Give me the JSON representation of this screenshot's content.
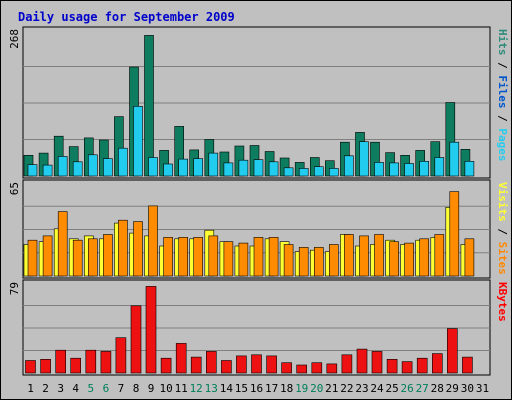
{
  "chart_data": {
    "type": "bar",
    "title": "Daily usage for September 2009",
    "categories": [
      "1",
      "2",
      "3",
      "4",
      "5",
      "6",
      "7",
      "8",
      "9",
      "10",
      "11",
      "12",
      "13",
      "14",
      "15",
      "16",
      "17",
      "18",
      "19",
      "20",
      "21",
      "22",
      "23",
      "24",
      "25",
      "26",
      "27",
      "28",
      "29",
      "30",
      "31"
    ],
    "weekend_days": [
      5,
      6,
      12,
      13,
      19,
      20,
      26,
      27
    ],
    "panels": [
      {
        "id": "hits",
        "axis_max_label": "268",
        "ylim": [
          0,
          268
        ],
        "legend": [
          {
            "label": "Hits",
            "color": "#2e8b7a"
          },
          {
            "label": "Files",
            "color": "#0055cc"
          },
          {
            "label": "Pages",
            "color": "#22ccee"
          }
        ],
        "series": [
          {
            "name": "Hits",
            "color": "#0e7d5f",
            "values": [
              38,
              42,
              73,
              54,
              70,
              66,
              109,
              200,
              258,
              47,
              91,
              48,
              67,
              44,
              55,
              56,
              45,
              33,
              25,
              34,
              28,
              62,
              80,
              62,
              43,
              38,
              47,
              63,
              135,
              49,
              0
            ]
          },
          {
            "name": "Pages",
            "color": "#22ccee",
            "values": [
              21,
              20,
              36,
              26,
              39,
              32,
              51,
              128,
              34,
              22,
              31,
              32,
              42,
              24,
              29,
              30,
              26,
              15,
              14,
              17,
              14,
              37,
              63,
              25,
              24,
              23,
              27,
              34,
              62,
              27,
              0
            ]
          }
        ]
      },
      {
        "id": "visits",
        "axis_max_label": "65",
        "ylim": [
          0,
          65
        ],
        "legend": [
          {
            "label": "Visits",
            "color": "#ffff33"
          },
          {
            "label": "Sites",
            "color": "#ff8800"
          }
        ],
        "series": [
          {
            "name": "Visits",
            "color": "#ffff33",
            "values": [
              22,
              24,
              33,
              26,
              28,
              26,
              37,
              30,
              28,
              21,
              26,
              26,
              32,
              24,
              21,
              21,
              26,
              24,
              17,
              18,
              17,
              29,
              21,
              22,
              25,
              22,
              25,
              27,
              48,
              22,
              0
            ]
          },
          {
            "name": "Sites",
            "color": "#ff8c00",
            "values": [
              25,
              28,
              45,
              25,
              26,
              29,
              39,
              38,
              49,
              27,
              27,
              27,
              28,
              24,
              23,
              27,
              27,
              22,
              20,
              20,
              22,
              29,
              28,
              29,
              24,
              23,
              26,
              29,
              59,
              26,
              0
            ]
          }
        ]
      },
      {
        "id": "kbytes",
        "axis_max_label": "79",
        "ylim": [
          0,
          79
        ],
        "legend": [
          {
            "label": "KBytes",
            "color": "#ff0000"
          }
        ],
        "series": [
          {
            "name": "KBytes",
            "color": "#ee1111",
            "values": [
              11,
              12,
              20,
              13,
              20,
              19,
              31,
              59,
              76,
              13,
              26,
              14,
              19,
              11,
              15,
              16,
              15,
              9,
              7,
              9,
              8,
              16,
              21,
              19,
              12,
              10,
              13,
              17,
              39,
              14,
              0
            ]
          }
        ]
      }
    ],
    "grid": true
  }
}
